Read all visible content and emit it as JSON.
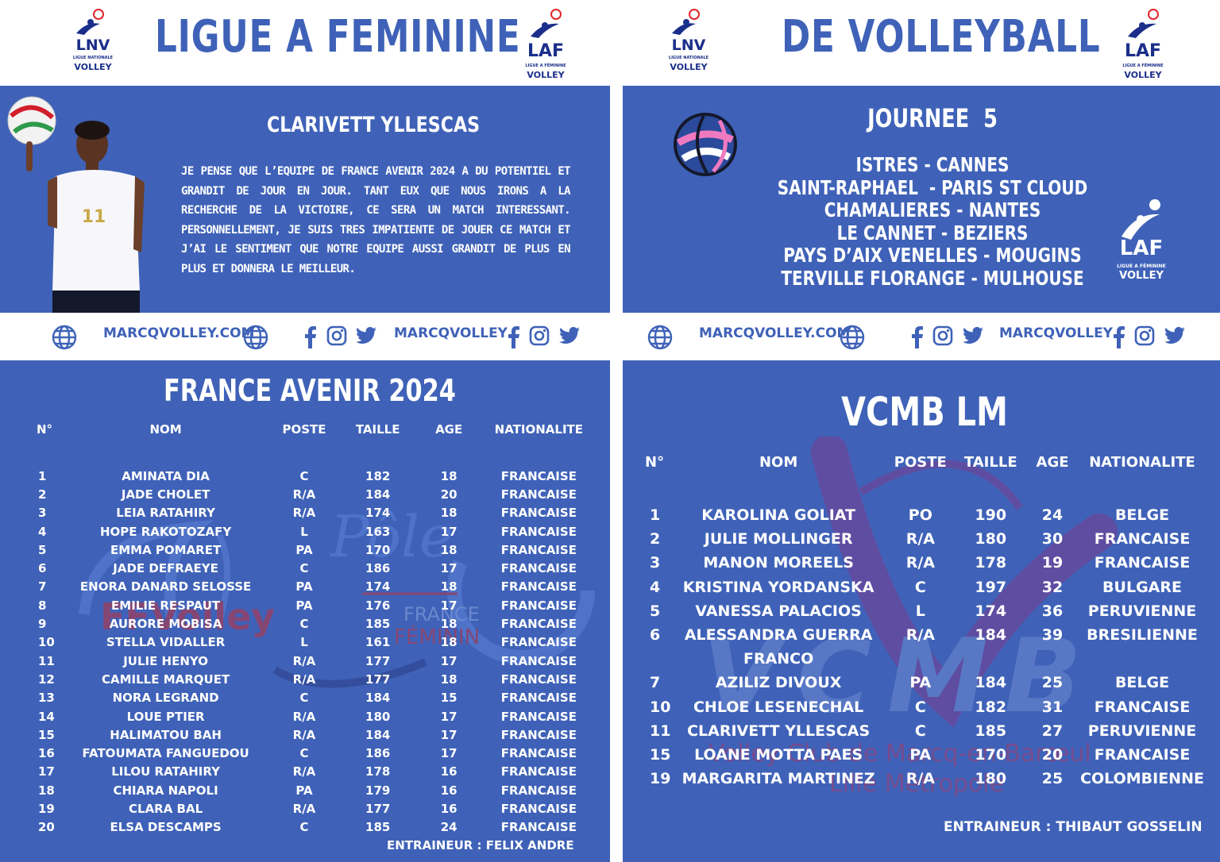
{
  "header": {
    "left_title": "LIGUE A FEMININE",
    "right_title": "DE VOLLEYBALL",
    "lnv_logo": {
      "line1": "LNV",
      "line2": "LIGUE NATIONALE",
      "line3": "VOLLEY"
    },
    "laf_logo": {
      "line1": "LAF",
      "line2": "LIGUE A FÉMININE",
      "line3": "VOLLEY"
    }
  },
  "quote": {
    "name": "CLARIVETT YLLESCAS",
    "text": "JE PENSE QUE L’EQUIPE DE FRANCE AVENIR 2024 A DU POTENTIEL ET GRANDIT DE JOUR EN JOUR. TANT EUX QUE NOUS IRONS A LA RECHERCHE DE LA VICTOIRE, CE SERA UN MATCH INTERESSANT. PERSONNELLEMENT, JE SUIS TRES IMPATIENTE DE JOUER CE MATCH ET J’AI LE SENTIMENT QUE NOTRE EQUIPE AUSSI GRANDIT DE PLUS EN PLUS ET DONNERA LE MEILLEUR.",
    "jersey_number": "11"
  },
  "journee": {
    "title": "JOURNEE  5",
    "matches": [
      "ISTRES - CANNES",
      "SAINT-RAPHAEL  - PARIS ST CLOUD",
      "CHAMALIERES - NANTES",
      "LE CANNET - BEZIERS",
      "PAYS D’AIX VENELLES - MOUGINS",
      "TERVILLE FLORANGE - MULHOUSE"
    ]
  },
  "social": {
    "website": "MARCQVOLLEY.COM",
    "handle": "MARCQVOLLEY"
  },
  "colors": {
    "blue": "#3f62b8",
    "navy": "#1b2e8a",
    "red": "#e0262b",
    "purple": "#7a3d8f"
  },
  "icons": [
    "globe-icon",
    "facebook-icon",
    "instagram-icon",
    "twitter-icon",
    "volleyball-icon"
  ],
  "france": {
    "title": "FRANCE AVENIR 2024",
    "headers": [
      "N°",
      "NOM",
      "POSTE",
      "TAILLE",
      "AGE",
      "NATIONALITE"
    ],
    "rows": [
      [
        "1",
        "AMINATA DIA",
        "C",
        "182",
        "18",
        "FRANCAISE"
      ],
      [
        "2",
        "JADE CHOLET",
        "R/A",
        "184",
        "20",
        "FRANCAISE"
      ],
      [
        "3",
        "LEIA RATAHIRY",
        "R/A",
        "174",
        "18",
        "FRANCAISE"
      ],
      [
        "4",
        "HOPE RAKOTOZAFY",
        "L",
        "163",
        "17",
        "FRANCAISE"
      ],
      [
        "5",
        "EMMA POMARET",
        "PA",
        "170",
        "18",
        "FRANCAISE"
      ],
      [
        "6",
        "JADE DEFRAEYE",
        "C",
        "186",
        "17",
        "FRANCAISE"
      ],
      [
        "7",
        "ENORA DANARD SELOSSE",
        "PA",
        "174",
        "18",
        "FRANCAISE"
      ],
      [
        "8",
        "EMILIE RESPAUT",
        "PA",
        "176",
        "17",
        "FRANCAISE"
      ],
      [
        "9",
        "AURORE MOBISA",
        "C",
        "185",
        "18",
        "FRANCAISE"
      ],
      [
        "10",
        "STELLA VIDALLER",
        "L",
        "161",
        "18",
        "FRANCAISE"
      ],
      [
        "11",
        "JULIE HENYO",
        "R/A",
        "177",
        "17",
        "FRANCAISE"
      ],
      [
        "12",
        "CAMILLE MARQUET",
        "R/A",
        "177",
        "18",
        "FRANCAISE"
      ],
      [
        "13",
        "NORA LEGRAND",
        "C",
        "184",
        "15",
        "FRANCAISE"
      ],
      [
        "14",
        "LOUE PTIER",
        "R/A",
        "180",
        "17",
        "FRANCAISE"
      ],
      [
        "15",
        "HALIMATOU BAH",
        "R/A",
        "184",
        "17",
        "FRANCAISE"
      ],
      [
        "16",
        "FATOUMATA FANGUEDOU",
        "C",
        "186",
        "17",
        "FRANCAISE"
      ],
      [
        "17",
        "LILOU RATAHIRY",
        "R/A",
        "178",
        "16",
        "FRANCAISE"
      ],
      [
        "18",
        "CHIARA NAPOLI",
        "PA",
        "179",
        "16",
        "FRANCAISE"
      ],
      [
        "19",
        "CLARA BAL",
        "R/A",
        "177",
        "16",
        "FRANCAISE"
      ],
      [
        "20",
        "ELSA DESCAMPS",
        "C",
        "185",
        "24",
        "FRANCAISE"
      ]
    ],
    "coach": "ENTRAINEUR : FELIX ANDRE",
    "watermark": {
      "brand": "FFVolley",
      "pole": "Pôle",
      "france": "FRANCE",
      "feminin": "FÉMININ"
    }
  },
  "vcmb": {
    "title": "VCMB LM",
    "headers": [
      "N°",
      "NOM",
      "POSTE",
      "TAILLE",
      "AGE",
      "NATIONALITE"
    ],
    "rows": [
      [
        "1",
        "KAROLINA GOLIAT",
        "PO",
        "190",
        "24",
        "BELGE"
      ],
      [
        "2",
        "JULIE MOLLINGER",
        "R/A",
        "180",
        "30",
        "FRANCAISE"
      ],
      [
        "3",
        "MANON MOREELS",
        "R/A",
        "178",
        "19",
        "FRANCAISE"
      ],
      [
        "4",
        "KRISTINA YORDANSKA",
        "C",
        "197",
        "32",
        "BULGARE"
      ],
      [
        "5",
        "VANESSA PALACIOS",
        "L",
        "174",
        "36",
        "PERUVIENNE"
      ],
      [
        "6",
        "ALESSANDRA GUERRA",
        "R/A",
        "184",
        "39",
        "BRESILIENNE"
      ],
      [
        "",
        "FRANCO",
        "",
        "",
        "",
        ""
      ],
      [
        "7",
        "AZILIZ DIVOUX",
        "PA",
        "184",
        "25",
        "BELGE"
      ],
      [
        "10",
        "CHLOE LESENECHAL",
        "C",
        "182",
        "31",
        "FRANCAISE"
      ],
      [
        "11",
        "CLARIVETT YLLESCAS",
        "C",
        "185",
        "27",
        "PERUVIENNE"
      ],
      [
        "15",
        "LOANE MOTTA PAES",
        "PA",
        "170",
        "20",
        "FRANCAISE"
      ],
      [
        "19",
        "MARGARITA MARTINEZ",
        "R/A",
        "180",
        "25",
        "COLOMBIENNE"
      ]
    ],
    "coach": "ENTRAINEUR : THIBAUT GOSSELIN",
    "watermark": {
      "letters": "VCMB",
      "line1": "Volley Club de Marcq-en-Barœul",
      "line2": "Lille Métropole"
    }
  }
}
